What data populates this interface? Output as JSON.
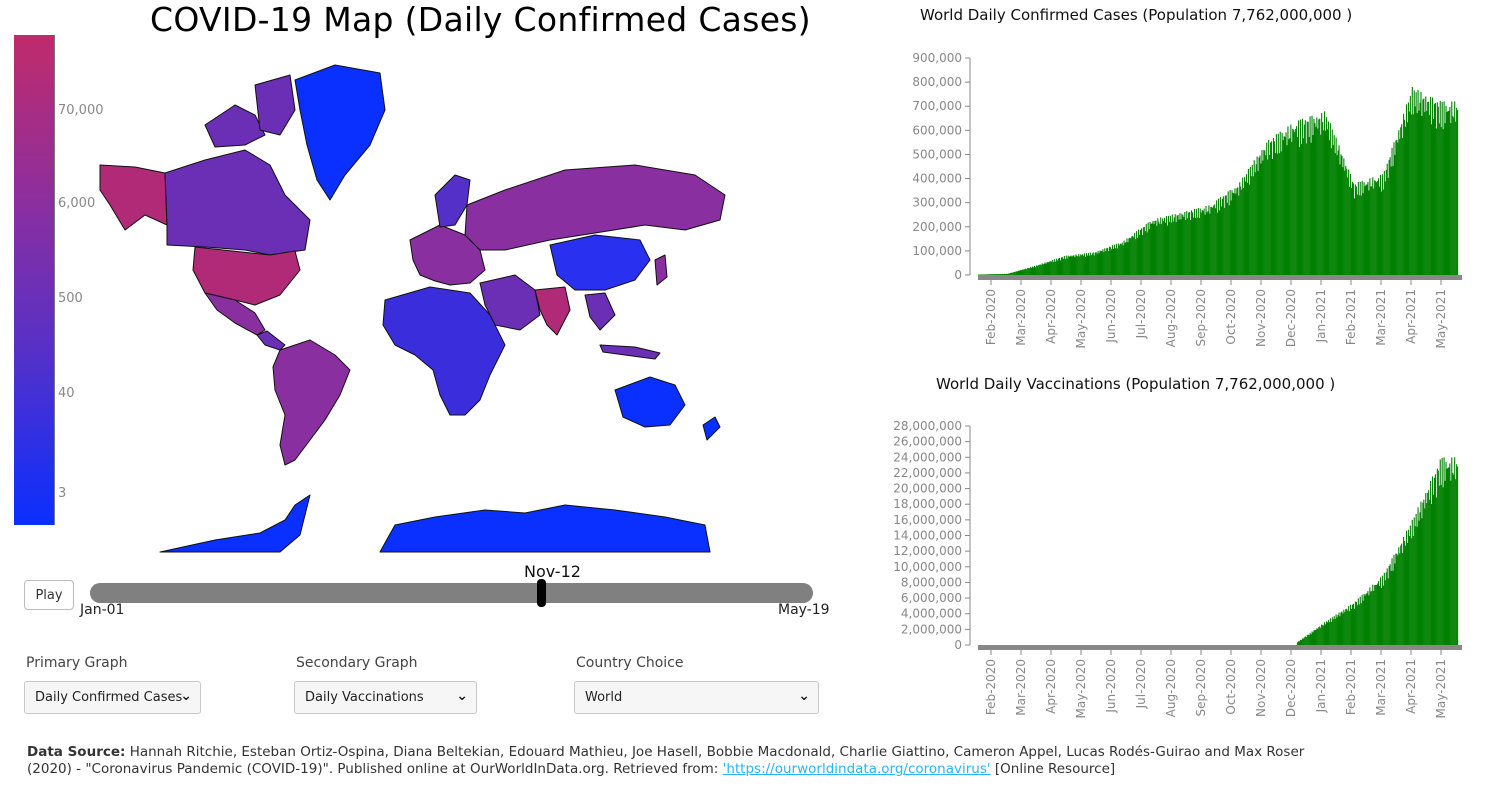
{
  "map": {
    "title": "COVID-19 Map (Daily Confirmed Cases)",
    "legend_ticks": [
      "70,000",
      "6,000",
      "500",
      "40",
      "3"
    ],
    "colors": {
      "high": "#c02b6b",
      "mid": "#7a2fae",
      "low": "#0a2fff"
    }
  },
  "controls": {
    "play_label": "Play",
    "slider_current": "Nov-12",
    "slider_start": "Jan-01",
    "slider_end": "May-19",
    "slider_position": 0.626
  },
  "dropdowns": {
    "primary": {
      "label": "Primary Graph",
      "value": "Daily Confirmed Cases"
    },
    "secondary": {
      "label": "Secondary Graph",
      "value": "Daily Vaccinations"
    },
    "country": {
      "label": "Country Choice",
      "value": "World"
    }
  },
  "charts": {
    "cases": {
      "title": "World Daily Confirmed Cases (Population 7,762,000,000 )"
    },
    "vaccinations": {
      "title": "World Daily Vaccinations (Population 7,762,000,000 )"
    }
  },
  "footer": {
    "source_label": "Data Source:",
    "text_1": " Hannah Ritchie, Esteban Ortiz-Ospina, Diana Beltekian, Edouard Mathieu, Joe Hasell, Bobbie Macdonald, Charlie Giattino, Cameron Appel, Lucas Rodés-Guirao and Max Roser (2020) - \"Coronavirus Pandemic (COVID-19)\". Published online at OurWorldInData.org. Retrieved from: ",
    "link": "'https://ourworldindata.org/coronavirus'",
    "text_2": " [Online Resource]"
  },
  "chart_data": [
    {
      "type": "bar",
      "title": "World Daily Confirmed Cases (Population 7,762,000,000 )",
      "bar_color": "#008000",
      "x_ticks": [
        "Feb-2020",
        "Mar-2020",
        "Apr-2020",
        "May-2020",
        "Jun-2020",
        "Jul-2020",
        "Aug-2020",
        "Sep-2020",
        "Oct-2020",
        "Nov-2020",
        "Dec-2020",
        "Jan-2021",
        "Feb-2021",
        "Mar-2021",
        "Apr-2021",
        "May-2021"
      ],
      "y_ticks": [
        "0",
        "100,000",
        "200,000",
        "300,000",
        "400,000",
        "500,000",
        "600,000",
        "700,000",
        "800,000",
        "900,000"
      ],
      "ylim": [
        0,
        900000
      ],
      "series_monthly_approx": [
        {
          "month": "Jan-2020",
          "value": 2000
        },
        {
          "month": "Feb-2020",
          "value": 5000
        },
        {
          "month": "Mar-2020",
          "value": 40000
        },
        {
          "month": "Apr-2020",
          "value": 80000
        },
        {
          "month": "May-2020",
          "value": 95000
        },
        {
          "month": "Jun-2020",
          "value": 140000
        },
        {
          "month": "Jul-2020",
          "value": 230000
        },
        {
          "month": "Aug-2020",
          "value": 260000
        },
        {
          "month": "Sep-2020",
          "value": 290000
        },
        {
          "month": "Oct-2020",
          "value": 380000
        },
        {
          "month": "Nov-2020",
          "value": 560000
        },
        {
          "month": "Dec-2020",
          "value": 640000
        },
        {
          "month": "Jan-2021",
          "value": 680000
        },
        {
          "month": "Feb-2021",
          "value": 380000
        },
        {
          "month": "Mar-2021",
          "value": 420000
        },
        {
          "month": "Apr-2021",
          "value": 780000
        },
        {
          "month": "May-2021",
          "value": 720000
        }
      ]
    },
    {
      "type": "bar",
      "title": "World Daily Vaccinations (Population 7,762,000,000 )",
      "bar_color": "#008000",
      "x_ticks": [
        "Feb-2020",
        "Mar-2020",
        "Apr-2020",
        "May-2020",
        "Jun-2020",
        "Jul-2020",
        "Aug-2020",
        "Sep-2020",
        "Oct-2020",
        "Nov-2020",
        "Dec-2020",
        "Jan-2021",
        "Feb-2021",
        "Mar-2021",
        "Apr-2021",
        "May-2021"
      ],
      "y_ticks": [
        "0",
        "2,000,000",
        "4,000,000",
        "6,000,000",
        "8,000,000",
        "10,000,000",
        "12,000,000",
        "14,000,000",
        "16,000,000",
        "18,000,000",
        "20,000,000",
        "22,000,000",
        "24,000,000",
        "26,000,000",
        "28,000,000"
      ],
      "ylim": [
        0,
        28000000
      ],
      "series_monthly_approx": [
        {
          "month": "Dec-2020",
          "value": 300000
        },
        {
          "month": "Jan-2021",
          "value": 3000000
        },
        {
          "month": "Feb-2021",
          "value": 5500000
        },
        {
          "month": "Mar-2021",
          "value": 9000000
        },
        {
          "month": "Apr-2021",
          "value": 16000000
        },
        {
          "month": "May-2021",
          "value": 24000000
        }
      ]
    }
  ]
}
